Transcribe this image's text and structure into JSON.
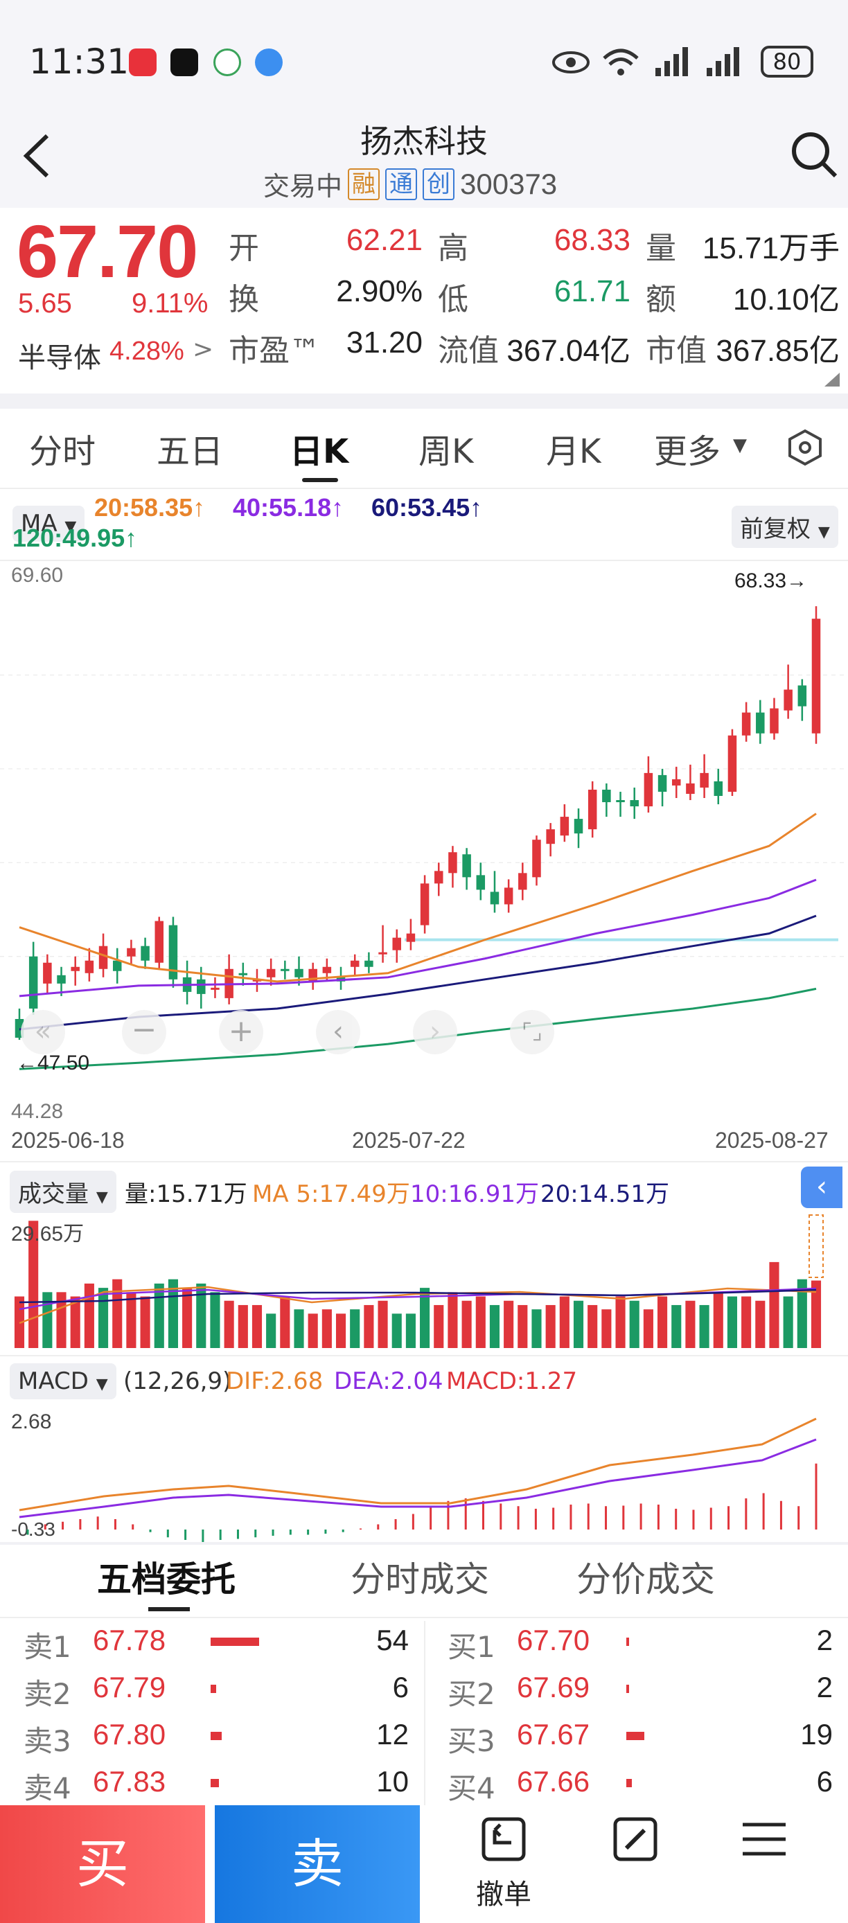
{
  "status_bar": {
    "time": "11:31",
    "battery": "80"
  },
  "header": {
    "stock_name": "扬杰科技",
    "trade_status": "交易中",
    "tags": [
      "融",
      "通",
      "创"
    ],
    "code": "300373"
  },
  "quote": {
    "price": "67.70",
    "change": "5.65",
    "change_pct": "9.11%",
    "sector_name": "半导体",
    "sector_pct": "4.28%",
    "open_label": "开",
    "open": "62.21",
    "high_label": "高",
    "high": "68.33",
    "volume_label": "量",
    "volume": "15.71万手",
    "turnover_label": "换",
    "turnover": "2.90%",
    "low_label": "低",
    "low": "61.71",
    "amount_label": "额",
    "amount": "10.10亿",
    "pe_label": "市盈™",
    "pe": "31.20",
    "float_cap_label": "流值",
    "float_cap": "367.04亿",
    "mkt_cap_label": "市值",
    "mkt_cap": "367.85亿"
  },
  "tabs": [
    "分时",
    "五日",
    "日K",
    "周K",
    "月K",
    "更多"
  ],
  "active_tab": "日K",
  "kline": {
    "ma_chip": "MA",
    "adjust_chip": "前复权",
    "ma_line1": [
      "20:58.35↑",
      "40:55.18↑",
      "60:53.45↑"
    ],
    "ma_line2": "120:49.95↑",
    "y_max_label": "69.60",
    "y_min_label": "44.28",
    "high_marker": "68.33→",
    "low_marker": "←47.50",
    "dates": [
      "2025-06-18",
      "2025-07-22",
      "2025-08-27"
    ]
  },
  "volume": {
    "chip": "成交量",
    "label": "量:15.71万",
    "ma5": "MA 5:17.49万",
    "ma10": "10:16.91万",
    "ma20": "20:14.51万",
    "max_label": "29.65万"
  },
  "macd": {
    "chip": "MACD",
    "params": "(12,26,9)",
    "dif": "DIF:2.68",
    "dea": "DEA:2.04",
    "macd": "MACD:1.27",
    "top_label": "2.68",
    "bottom_label": "-0.33"
  },
  "order_book": {
    "tabs": [
      "五档委托",
      "分时成交",
      "分价成交"
    ],
    "sell": [
      {
        "label": "卖1",
        "price": "67.78",
        "vol": "54",
        "w": 70
      },
      {
        "label": "卖2",
        "price": "67.79",
        "vol": "6",
        "w": 8
      },
      {
        "label": "卖3",
        "price": "67.80",
        "vol": "12",
        "w": 16
      },
      {
        "label": "卖4",
        "price": "67.83",
        "vol": "10",
        "w": 12
      }
    ],
    "buy": [
      {
        "label": "买1",
        "price": "67.70",
        "vol": "2",
        "w": 4
      },
      {
        "label": "买2",
        "price": "67.69",
        "vol": "2",
        "w": 4
      },
      {
        "label": "买3",
        "price": "67.67",
        "vol": "19",
        "w": 26
      },
      {
        "label": "买4",
        "price": "67.66",
        "vol": "6",
        "w": 8
      }
    ]
  },
  "bottom": {
    "buy": "买",
    "sell": "卖",
    "cancel": "撤单"
  },
  "colors": {
    "up": "#e0353b",
    "down": "#1b9a64",
    "ma20": "#e8842c",
    "ma40": "#8a2be2",
    "ma60": "#1a1a7a",
    "ma120": "#1b9a64"
  },
  "chart_data": [
    {
      "type": "candlestick",
      "title": "",
      "x_range": [
        "2025-06-18",
        "2025-08-27"
      ],
      "ylim": [
        44.28,
        69.6
      ],
      "high": 68.33,
      "low": 47.5,
      "last_close": 67.7,
      "moving_averages": [
        {
          "name": "MA20",
          "last": 58.35
        },
        {
          "name": "MA40",
          "last": 55.18
        },
        {
          "name": "MA60",
          "last": 53.45
        },
        {
          "name": "MA120",
          "last": 49.95
        }
      ]
    },
    {
      "type": "bar",
      "title": "成交量",
      "ylim": [
        0,
        29.65
      ],
      "last": 15.71,
      "ma": [
        {
          "name": "MA5",
          "last": 17.49
        },
        {
          "name": "MA10",
          "last": 16.91
        },
        {
          "name": "MA20",
          "last": 14.51
        }
      ]
    },
    {
      "type": "line",
      "title": "MACD",
      "ylim": [
        -0.33,
        2.68
      ],
      "series": [
        {
          "name": "DIF",
          "last": 2.68
        },
        {
          "name": "DEA",
          "last": 2.04
        },
        {
          "name": "MACD",
          "last": 1.27
        }
      ]
    }
  ]
}
